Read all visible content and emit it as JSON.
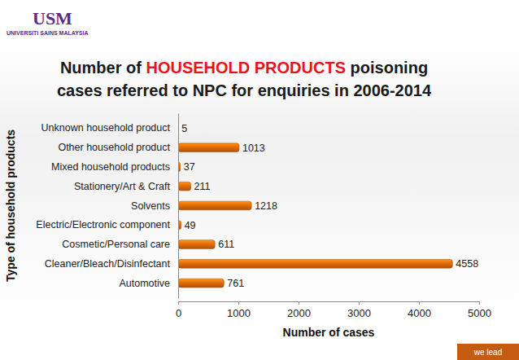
{
  "header": {
    "logo": "USM",
    "institution": "UNIVERSITI SAINS MALAYSIA"
  },
  "footer": {
    "tagline": "we lead"
  },
  "chart_data": {
    "type": "bar",
    "orientation": "horizontal",
    "title": "Number of HOUSEHOLD PRODUCTS poisoning cases referred to NPC for enquiries in 2006-2014",
    "x_label": "Number of cases",
    "y_label": "Type of household products",
    "categories": [
      "Unknown household product",
      "Other household product",
      "Mixed household products",
      "Stationery/Art & Craft",
      "Solvents",
      "Electric/Electronic component",
      "Cosmetic/Personal care",
      "Cleaner/Bleach/Disinfectant",
      "Automotive"
    ],
    "values": [
      5,
      1013,
      37,
      211,
      1218,
      49,
      611,
      4558,
      761
    ],
    "color": "#e46c0a",
    "xlim": [
      0,
      5000
    ],
    "xticks": [
      0,
      1000,
      2000,
      3000,
      4000,
      5000
    ],
    "grid": false,
    "data_labels": true
  }
}
